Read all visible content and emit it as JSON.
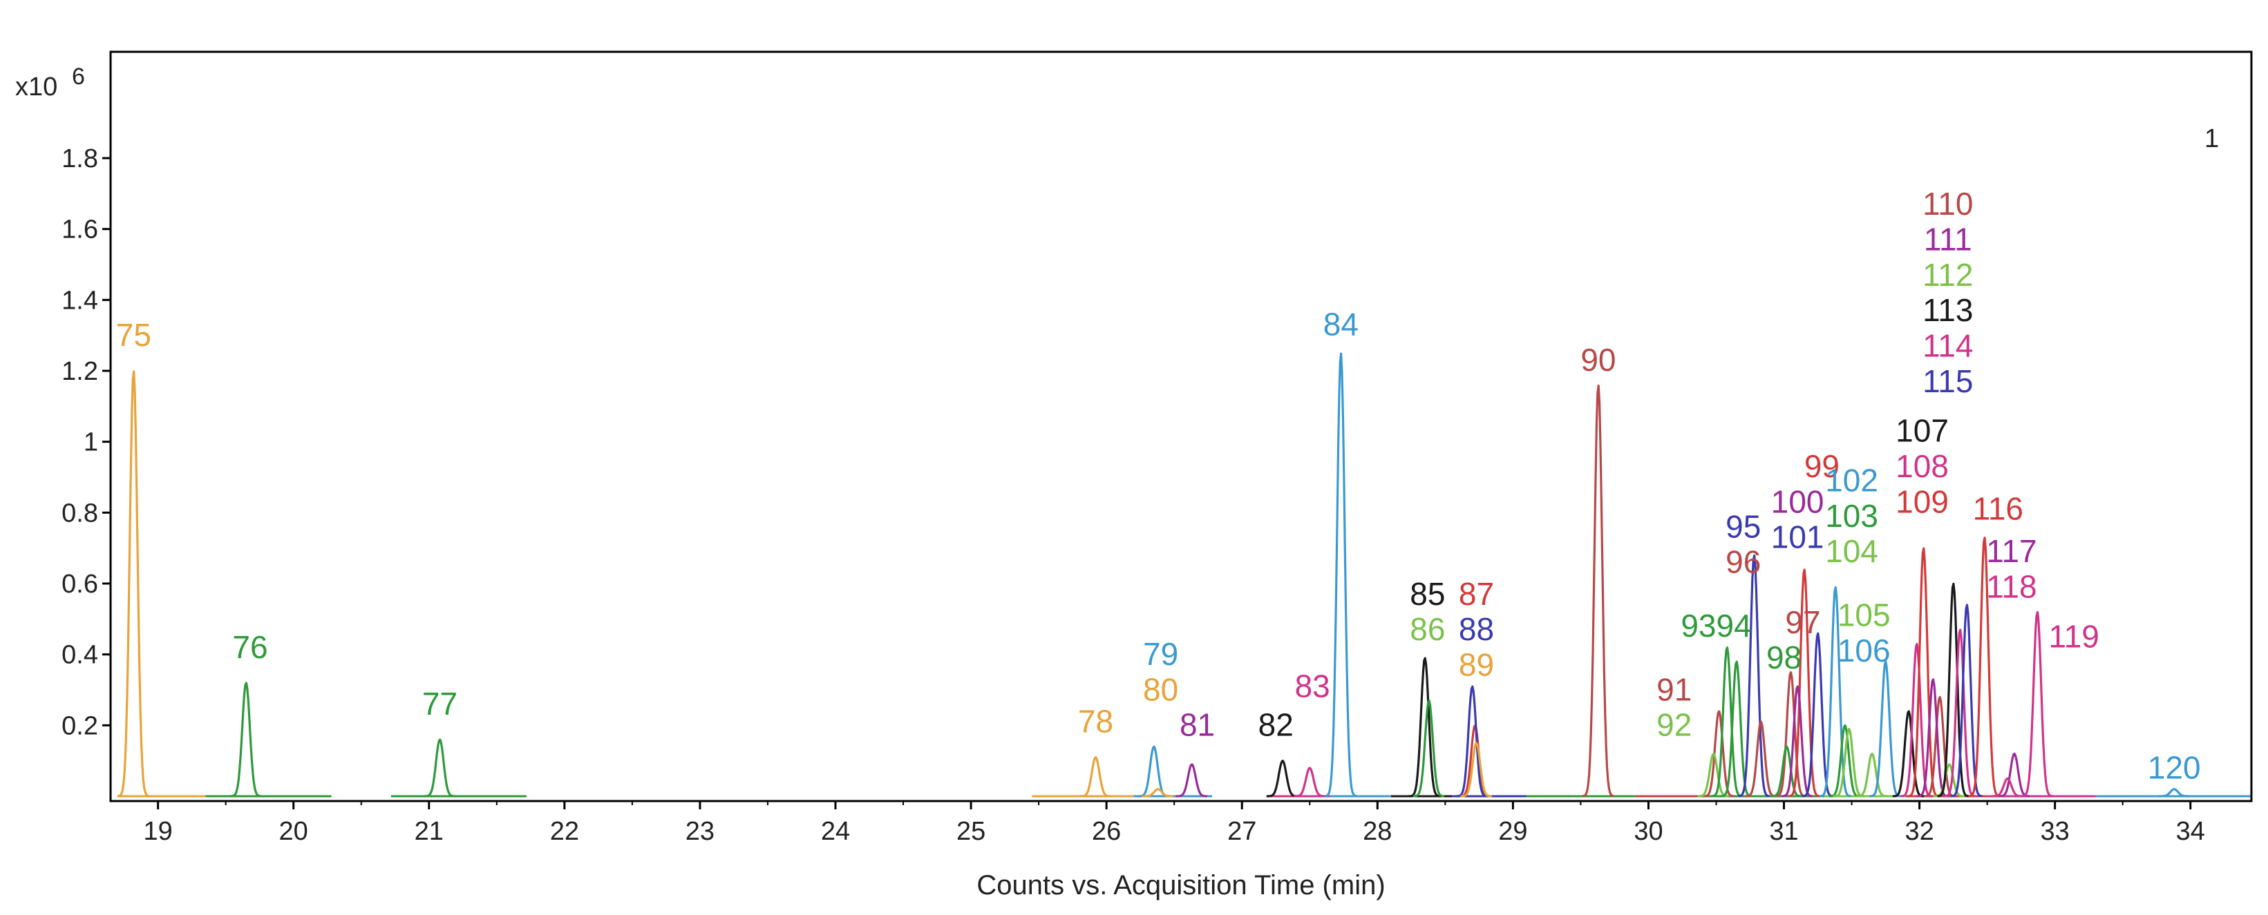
{
  "chart_data": {
    "type": "line",
    "title": "",
    "panel_label": "1",
    "xlabel": "Counts vs. Acquisition Time (min)",
    "ylabel": "",
    "y_multiplier_label": "x10",
    "y_multiplier_exponent": "6",
    "xlim": [
      18.65,
      34.45
    ],
    "ylim": [
      0,
      2.1
    ],
    "x_ticks": [
      19,
      20,
      21,
      22,
      23,
      24,
      25,
      26,
      27,
      28,
      29,
      30,
      31,
      32,
      33,
      34
    ],
    "y_ticks": [
      0.2,
      0.4,
      0.6,
      0.8,
      1,
      1.2,
      1.4,
      1.6,
      1.8
    ],
    "y_tick_labels": [
      "0.2",
      "0.4",
      "0.6",
      "0.8",
      "1",
      "1.2",
      "1.4",
      "1.6",
      "1.8"
    ],
    "grid": false,
    "peaks": [
      {
        "id": "75",
        "x": 18.82,
        "y": 1.2,
        "color": "#e8a33a"
      },
      {
        "id": "76",
        "x": 19.65,
        "y": 0.32,
        "color": "#2e9a3a"
      },
      {
        "id": "77",
        "x": 21.08,
        "y": 0.16,
        "color": "#2e9a3a"
      },
      {
        "id": "78",
        "x": 25.92,
        "y": 0.11,
        "color": "#e8a33a"
      },
      {
        "id": "79",
        "x": 26.35,
        "y": 0.14,
        "color": "#3a9ad0"
      },
      {
        "id": "80",
        "x": 26.38,
        "y": 0.02,
        "color": "#e8a33a"
      },
      {
        "id": "81",
        "x": 26.63,
        "y": 0.09,
        "color": "#9a2a9a"
      },
      {
        "id": "82",
        "x": 27.3,
        "y": 0.1,
        "color": "#1a1a1a"
      },
      {
        "id": "83",
        "x": 27.5,
        "y": 0.08,
        "color": "#d0338a"
      },
      {
        "id": "84",
        "x": 27.73,
        "y": 1.25,
        "color": "#3a9ad0"
      },
      {
        "id": "85",
        "x": 28.35,
        "y": 0.39,
        "color": "#1a1a1a"
      },
      {
        "id": "86",
        "x": 28.38,
        "y": 0.27,
        "color": "#2e9a3a"
      },
      {
        "id": "87",
        "x": 28.72,
        "y": 0.2,
        "color": "#d23a3a"
      },
      {
        "id": "88",
        "x": 28.7,
        "y": 0.31,
        "color": "#3a3ab0"
      },
      {
        "id": "89",
        "x": 28.73,
        "y": 0.15,
        "color": "#e8a33a"
      },
      {
        "id": "90",
        "x": 29.63,
        "y": 1.16,
        "color": "#b84848"
      },
      {
        "id": "91",
        "x": 30.52,
        "y": 0.24,
        "color": "#b84848"
      },
      {
        "id": "92",
        "x": 30.48,
        "y": 0.12,
        "color": "#7ac24a"
      },
      {
        "id": "93",
        "x": 30.58,
        "y": 0.42,
        "color": "#2e9a3a"
      },
      {
        "id": "94",
        "x": 30.65,
        "y": 0.38,
        "color": "#2e9a3a"
      },
      {
        "id": "95",
        "x": 30.78,
        "y": 0.68,
        "color": "#3a3ab0"
      },
      {
        "id": "96",
        "x": 30.83,
        "y": 0.21,
        "color": "#b84848"
      },
      {
        "id": "97",
        "x": 31.05,
        "y": 0.35,
        "color": "#b84848"
      },
      {
        "id": "98",
        "x": 31.02,
        "y": 0.14,
        "color": "#2e9a3a"
      },
      {
        "id": "99",
        "x": 31.15,
        "y": 0.64,
        "color": "#d23a3a"
      },
      {
        "id": "100",
        "x": 31.1,
        "y": 0.31,
        "color": "#9a2a9a"
      },
      {
        "id": "101",
        "x": 31.25,
        "y": 0.46,
        "color": "#3a3ab0"
      },
      {
        "id": "102",
        "x": 31.38,
        "y": 0.59,
        "color": "#3a9ad0"
      },
      {
        "id": "103",
        "x": 31.45,
        "y": 0.2,
        "color": "#2e9a3a"
      },
      {
        "id": "104",
        "x": 31.48,
        "y": 0.19,
        "color": "#7ac24a"
      },
      {
        "id": "105",
        "x": 31.65,
        "y": 0.12,
        "color": "#7ac24a"
      },
      {
        "id": "106",
        "x": 31.75,
        "y": 0.38,
        "color": "#3a9ad0"
      },
      {
        "id": "107",
        "x": 31.92,
        "y": 0.24,
        "color": "#1a1a1a"
      },
      {
        "id": "108",
        "x": 31.98,
        "y": 0.43,
        "color": "#d0338a"
      },
      {
        "id": "109",
        "x": 32.03,
        "y": 0.7,
        "color": "#d23a3a"
      },
      {
        "id": "110",
        "x": 32.15,
        "y": 0.28,
        "color": "#b84848"
      },
      {
        "id": "111",
        "x": 32.1,
        "y": 0.33,
        "color": "#9a2a9a"
      },
      {
        "id": "112",
        "x": 32.22,
        "y": 0.09,
        "color": "#7ac24a"
      },
      {
        "id": "113",
        "x": 32.25,
        "y": 0.6,
        "color": "#1a1a1a"
      },
      {
        "id": "114",
        "x": 32.3,
        "y": 0.47,
        "color": "#d0338a"
      },
      {
        "id": "115",
        "x": 32.35,
        "y": 0.54,
        "color": "#3a3ab0"
      },
      {
        "id": "116",
        "x": 32.48,
        "y": 0.73,
        "color": "#d23a3a"
      },
      {
        "id": "117",
        "x": 32.7,
        "y": 0.12,
        "color": "#9a2a9a"
      },
      {
        "id": "118",
        "x": 32.65,
        "y": 0.05,
        "color": "#d0338a"
      },
      {
        "id": "119",
        "x": 32.87,
        "y": 0.52,
        "color": "#d0338a"
      },
      {
        "id": "120",
        "x": 33.88,
        "y": 0.02,
        "color": "#3a9ad0"
      }
    ],
    "labels": [
      {
        "text": "75",
        "x": 18.82,
        "y": 1.27,
        "color": "#e8a33a"
      },
      {
        "text": "76",
        "x": 19.68,
        "y": 0.39,
        "color": "#2e9a3a"
      },
      {
        "text": "77",
        "x": 21.08,
        "y": 0.23,
        "color": "#2e9a3a"
      },
      {
        "text": "78",
        "x": 25.92,
        "y": 0.18,
        "color": "#e8a33a"
      },
      {
        "text": "79",
        "x": 26.4,
        "y": 0.37,
        "color": "#3a9ad0"
      },
      {
        "text": "80",
        "x": 26.4,
        "y": 0.27,
        "color": "#e8a33a"
      },
      {
        "text": "81",
        "x": 26.67,
        "y": 0.17,
        "color": "#9a2a9a"
      },
      {
        "text": "82",
        "x": 27.25,
        "y": 0.17,
        "color": "#1a1a1a"
      },
      {
        "text": "83",
        "x": 27.52,
        "y": 0.28,
        "color": "#d0338a"
      },
      {
        "text": "84",
        "x": 27.73,
        "y": 1.3,
        "color": "#3a9ad0"
      },
      {
        "text": "85",
        "x": 28.37,
        "y": 0.54,
        "color": "#1a1a1a"
      },
      {
        "text": "86",
        "x": 28.37,
        "y": 0.44,
        "color": "#7ac24a"
      },
      {
        "text": "87",
        "x": 28.73,
        "y": 0.54,
        "color": "#d23a3a"
      },
      {
        "text": "88",
        "x": 28.73,
        "y": 0.44,
        "color": "#3a3ab0"
      },
      {
        "text": "89",
        "x": 28.73,
        "y": 0.34,
        "color": "#e8a33a"
      },
      {
        "text": "90",
        "x": 29.63,
        "y": 1.2,
        "color": "#b84848"
      },
      {
        "text": "91",
        "x": 30.19,
        "y": 0.27,
        "color": "#b84848"
      },
      {
        "text": "92",
        "x": 30.19,
        "y": 0.17,
        "color": "#7ac24a"
      },
      {
        "text": "9394",
        "x": 30.5,
        "y": 0.45,
        "color": "#2e9a3a"
      },
      {
        "text": "95",
        "x": 30.7,
        "y": 0.73,
        "color": "#3a3ab0"
      },
      {
        "text": "96",
        "x": 30.7,
        "y": 0.63,
        "color": "#b84848"
      },
      {
        "text": "97",
        "x": 31.14,
        "y": 0.46,
        "color": "#b84848"
      },
      {
        "text": "98",
        "x": 31.0,
        "y": 0.36,
        "color": "#2e9a3a"
      },
      {
        "text": "99",
        "x": 31.28,
        "y": 0.9,
        "color": "#d23a3a"
      },
      {
        "text": "100",
        "x": 31.1,
        "y": 0.8,
        "color": "#9a2a9a"
      },
      {
        "text": "101",
        "x": 31.1,
        "y": 0.7,
        "color": "#3a3ab0"
      },
      {
        "text": "102",
        "x": 31.5,
        "y": 0.86,
        "color": "#3a9ad0"
      },
      {
        "text": "103",
        "x": 31.5,
        "y": 0.76,
        "color": "#2e9a3a"
      },
      {
        "text": "104",
        "x": 31.5,
        "y": 0.66,
        "color": "#7ac24a"
      },
      {
        "text": "105",
        "x": 31.59,
        "y": 0.48,
        "color": "#7ac24a"
      },
      {
        "text": "106",
        "x": 31.59,
        "y": 0.38,
        "color": "#3a9ad0"
      },
      {
        "text": "107",
        "x": 32.02,
        "y": 1.0,
        "color": "#1a1a1a"
      },
      {
        "text": "108",
        "x": 32.02,
        "y": 0.9,
        "color": "#d0338a"
      },
      {
        "text": "109",
        "x": 32.02,
        "y": 0.8,
        "color": "#d23a3a"
      },
      {
        "text": "110",
        "x": 32.21,
        "y": 1.64,
        "color": "#b84848"
      },
      {
        "text": "111",
        "x": 32.21,
        "y": 1.54,
        "color": "#9a2a9a"
      },
      {
        "text": "112",
        "x": 32.21,
        "y": 1.44,
        "color": "#7ac24a"
      },
      {
        "text": "113",
        "x": 32.21,
        "y": 1.34,
        "color": "#1a1a1a"
      },
      {
        "text": "114",
        "x": 32.21,
        "y": 1.24,
        "color": "#d0338a"
      },
      {
        "text": "115",
        "x": 32.21,
        "y": 1.14,
        "color": "#3a3ab0"
      },
      {
        "text": "116",
        "x": 32.58,
        "y": 0.78,
        "color": "#d23a3a"
      },
      {
        "text": "117",
        "x": 32.68,
        "y": 0.66,
        "color": "#9a2a9a"
      },
      {
        "text": "118",
        "x": 32.68,
        "y": 0.56,
        "color": "#d0338a"
      },
      {
        "text": "119",
        "x": 33.14,
        "y": 0.42,
        "color": "#d0338a"
      },
      {
        "text": "120",
        "x": 33.88,
        "y": 0.05,
        "color": "#3a9ad0"
      }
    ]
  }
}
